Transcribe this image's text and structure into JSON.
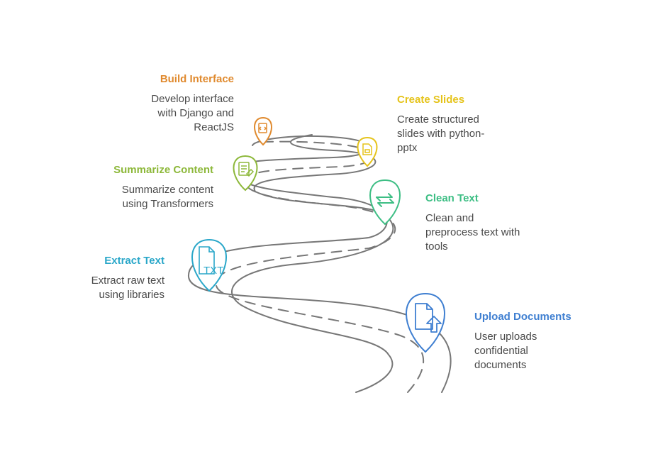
{
  "steps": [
    {
      "id": "build-interface",
      "title": "Build Interface",
      "desc": "Develop interface\nwith Django and\nReactJS",
      "color": "#E08A2E",
      "icon": "code-document-icon"
    },
    {
      "id": "create-slides",
      "title": "Create Slides",
      "desc": "Create structured\nslides with python-\npptx",
      "color": "#E5C31A",
      "icon": "slide-document-icon"
    },
    {
      "id": "summarize-content",
      "title": "Summarize Content",
      "desc": "Summarize content\nusing Transformers",
      "color": "#8DB83A",
      "icon": "summary-document-icon"
    },
    {
      "id": "clean-text",
      "title": "Clean Text",
      "desc": "Clean and\npreprocess text with\ntools",
      "color": "#3DBE84",
      "icon": "swap-arrows-icon"
    },
    {
      "id": "extract-text",
      "title": "Extract Text",
      "desc": "Extract raw text\nusing libraries",
      "color": "#2AA7C9",
      "icon": "txt-file-icon",
      "icon_text": "TXT"
    },
    {
      "id": "upload-documents",
      "title": "Upload Documents",
      "desc": "User uploads\nconfidential\ndocuments",
      "color": "#3F7FD1",
      "icon": "upload-document-icon"
    }
  ]
}
